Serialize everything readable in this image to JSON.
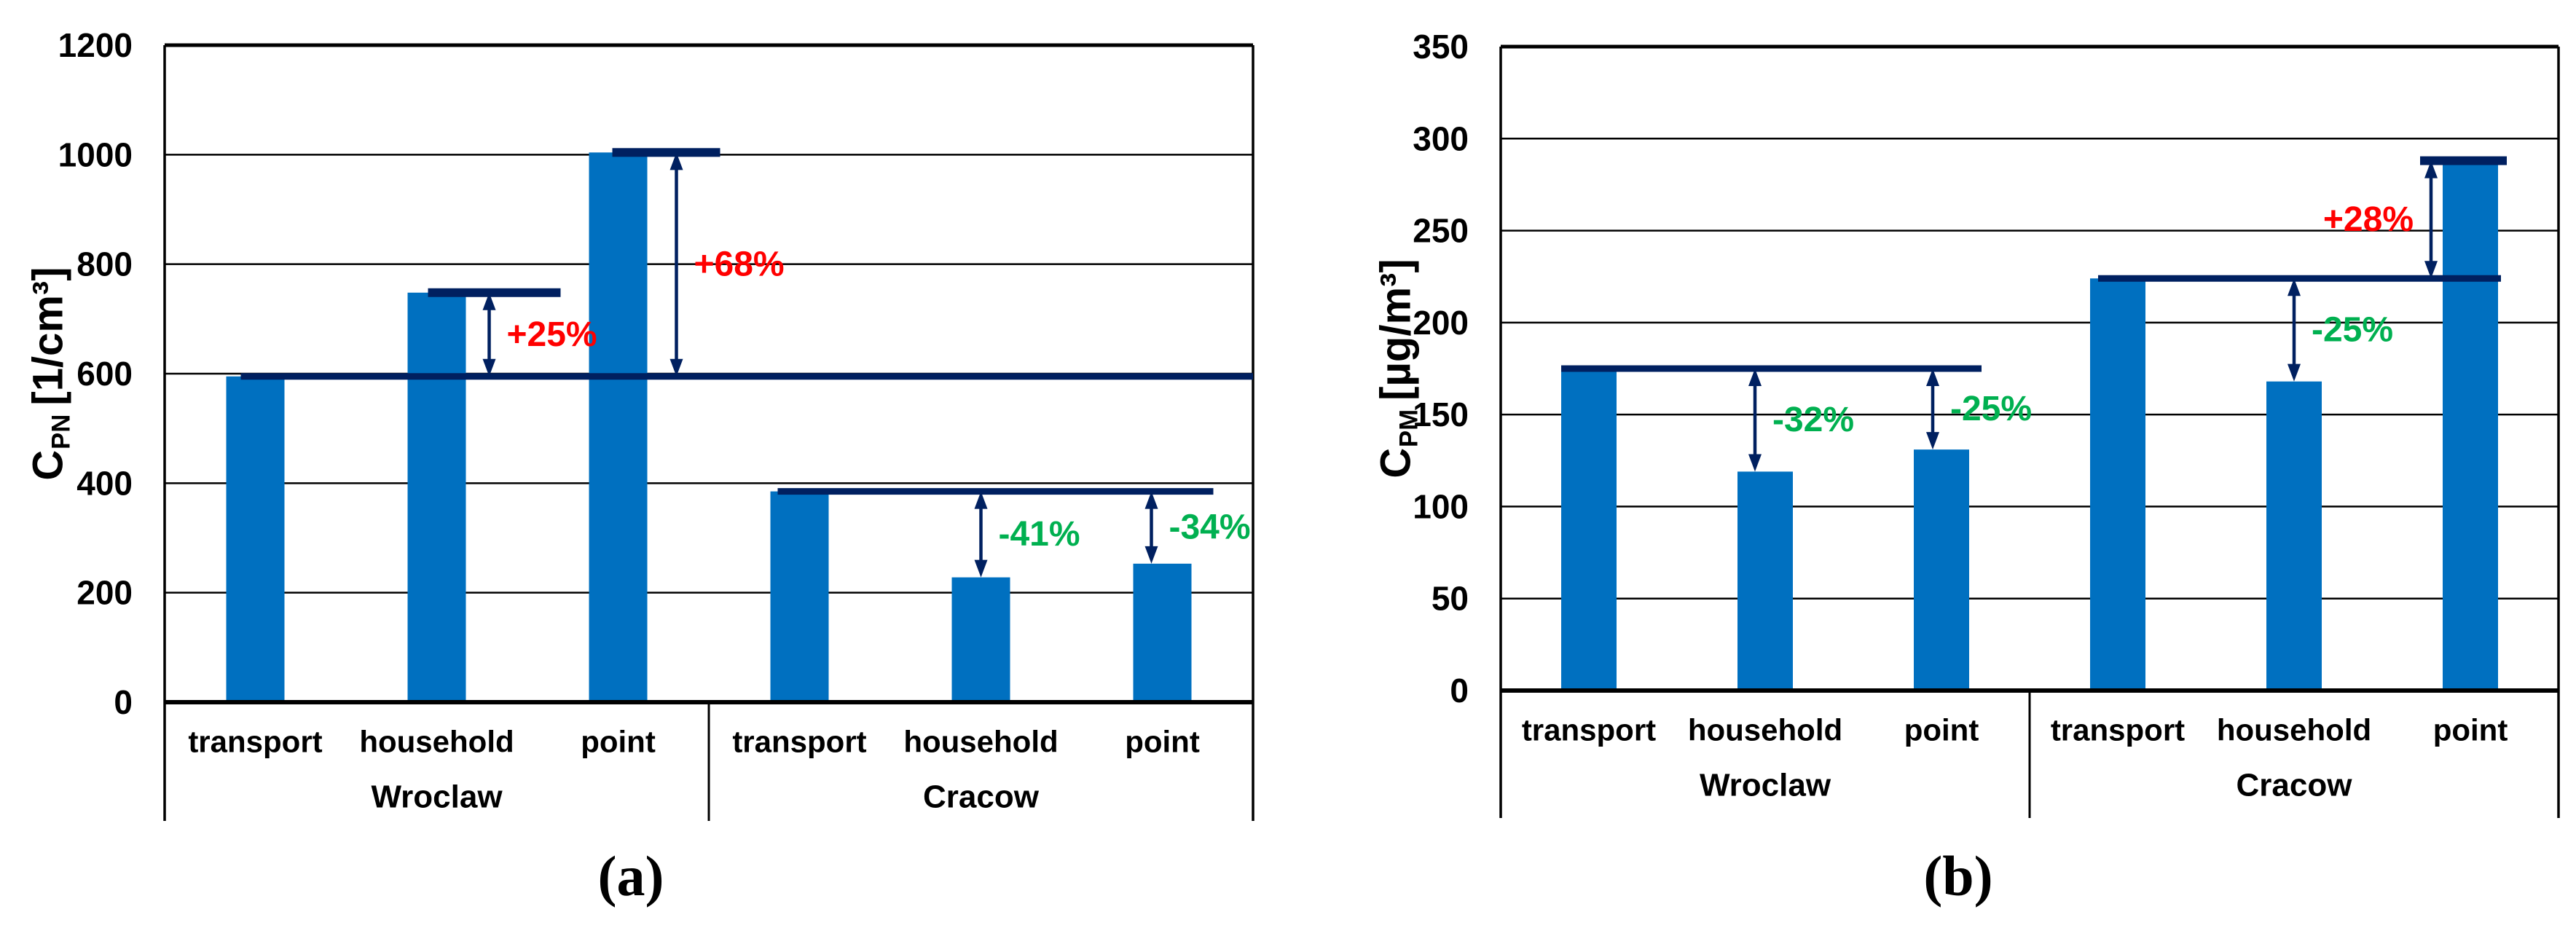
{
  "colors": {
    "bar": "#0070C0",
    "reference": "#002060",
    "increase": "#FF0000",
    "decrease": "#00B050",
    "axis": "#000000",
    "background": "#FFFFFF"
  },
  "chart_data": [
    {
      "type": "bar",
      "panel": "a",
      "caption": "(a)",
      "ylabel": {
        "symbol": "C",
        "subscript": "PN",
        "unit": "[1/cm³]"
      },
      "ylim": [
        0,
        1200
      ],
      "ytick_step": 200,
      "yticks": [
        0,
        200,
        400,
        600,
        800,
        1000,
        1200
      ],
      "grid": true,
      "legend": "none",
      "categories": [
        "transport",
        "household",
        "point",
        "transport",
        "household",
        "point"
      ],
      "groups": [
        {
          "label": "Wroclaw",
          "items": [
            {
              "category": "transport",
              "value": 595
            },
            {
              "category": "household",
              "value": 748
            },
            {
              "category": "point",
              "value": 1004
            }
          ]
        },
        {
          "label": "Cracow",
          "items": [
            {
              "category": "transport",
              "value": 385
            },
            {
              "category": "household",
              "value": 228
            },
            {
              "category": "point",
              "value": 253
            }
          ]
        }
      ],
      "reference_lines": [
        {
          "value": 595,
          "from_bar": 0,
          "from_dx": -20,
          "to": "plot_right",
          "to_dx": 0
        },
        {
          "value": 385,
          "from_bar": 3,
          "from_dx": -30,
          "to_bar": 5,
          "to_dx": 30
        }
      ],
      "bar_top_caps": [
        {
          "bar_index": 1,
          "value": 748,
          "dx1": -12,
          "dx2": 130
        },
        {
          "bar_index": 2,
          "value": 1004,
          "dx1": -8,
          "dx2": 100
        }
      ],
      "annotations": [
        {
          "label": "+25%",
          "change": "increase",
          "from": 595,
          "to": 748,
          "bar_index": 1,
          "dx": 72,
          "label_side": "right"
        },
        {
          "label": "+68%",
          "change": "increase",
          "from": 595,
          "to": 1004,
          "bar_index": 2,
          "dx": 80,
          "label_side": "right"
        },
        {
          "label": "-41%",
          "change": "decrease",
          "from": 385,
          "to": 228,
          "bar_index": 4,
          "dx": 0,
          "label_side": "right"
        },
        {
          "label": "-34%",
          "change": "decrease",
          "from": 385,
          "to": 253,
          "bar_index": 5,
          "dx": -15,
          "label_side": "right"
        }
      ]
    },
    {
      "type": "bar",
      "panel": "b",
      "caption": "(b)",
      "ylabel": {
        "symbol": "C",
        "subscript": "PM",
        "unit": "[µg/m³]"
      },
      "ylim": [
        0,
        350
      ],
      "ytick_step": 50,
      "yticks": [
        0,
        50,
        100,
        150,
        200,
        250,
        300,
        350
      ],
      "grid": true,
      "legend": "none",
      "categories": [
        "transport",
        "household",
        "point",
        "transport",
        "household",
        "point"
      ],
      "groups": [
        {
          "label": "Wroclaw",
          "items": [
            {
              "category": "transport",
              "value": 175
            },
            {
              "category": "household",
              "value": 119
            },
            {
              "category": "point",
              "value": 131
            }
          ]
        },
        {
          "label": "Cracow",
          "items": [
            {
              "category": "transport",
              "value": 224
            },
            {
              "category": "household",
              "value": 168
            },
            {
              "category": "point",
              "value": 288
            }
          ]
        }
      ],
      "reference_lines": [
        {
          "value": 175,
          "from_bar": 0,
          "from_dx": -38,
          "to_bar": 2,
          "to_dx": 17
        },
        {
          "value": 224,
          "from_bar": 3,
          "from_dx": -27,
          "to_bar": 5,
          "to_dx": 4
        }
      ],
      "bar_top_caps": [
        {
          "bar_index": 5,
          "value": 288,
          "dx1": -69,
          "dx2": 12
        }
      ],
      "annotations": [
        {
          "label": "-32%",
          "change": "decrease",
          "from": 175,
          "to": 119,
          "bar_index": 1,
          "dx": -14,
          "label_side": "right"
        },
        {
          "label": "-25%",
          "change": "decrease",
          "from": 175,
          "to": 131,
          "bar_index": 2,
          "dx": -12,
          "label_side": "right"
        },
        {
          "label": "-25%",
          "change": "decrease",
          "from": 224,
          "to": 168,
          "bar_index": 4,
          "dx": 0,
          "label_side": "right"
        },
        {
          "label": "+28%",
          "change": "increase",
          "from": 224,
          "to": 288,
          "bar_index": 5,
          "dx": -54,
          "label_side": "left"
        }
      ]
    }
  ]
}
